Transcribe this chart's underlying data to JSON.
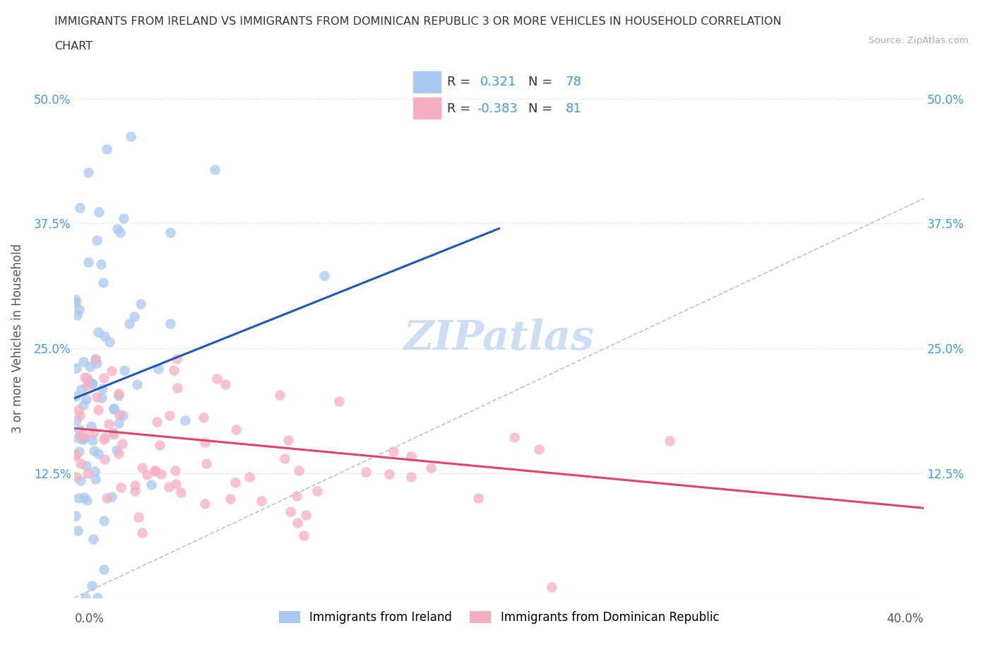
{
  "title_line1": "IMMIGRANTS FROM IRELAND VS IMMIGRANTS FROM DOMINICAN REPUBLIC 3 OR MORE VEHICLES IN HOUSEHOLD CORRELATION",
  "title_line2": "CHART",
  "source": "Source: ZipAtlas.com",
  "ylabel": "3 or more Vehicles in Household",
  "xlim": [
    0.0,
    40.0
  ],
  "ylim": [
    0.0,
    50.0
  ],
  "R_ireland": 0.321,
  "N_ireland": 78,
  "R_dominican": -0.383,
  "N_dominican": 81,
  "legend_label_ireland": "Immigrants from Ireland",
  "legend_label_dominican": "Immigrants from Dominican Republic",
  "color_ireland": "#a8c8f0",
  "color_dominican": "#f5afc0",
  "regression_color_ireland": "#2255bb",
  "regression_color_dominican": "#dd4466",
  "watermark": "ZIPatlas",
  "watermark_color": "#ccddf5",
  "grid_color": "#dddddd",
  "tick_label_color": "#4499dd"
}
